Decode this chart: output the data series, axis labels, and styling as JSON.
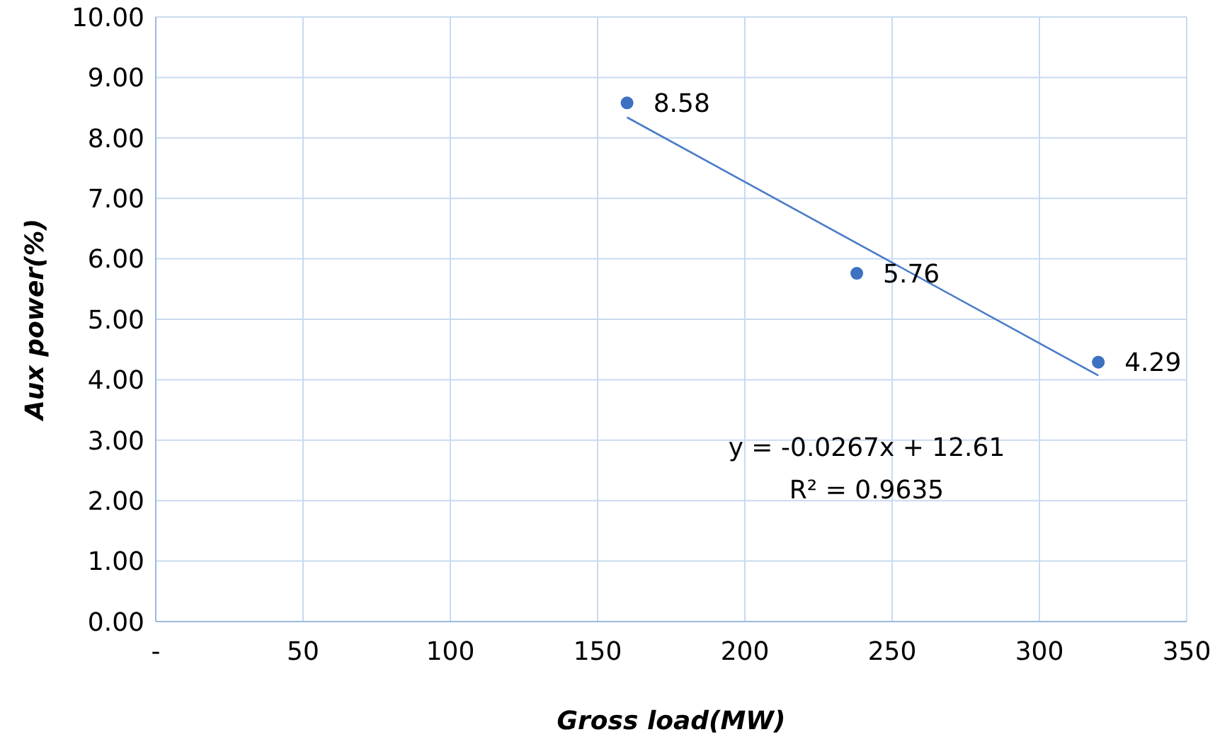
{
  "chart_data": {
    "type": "scatter",
    "xlabel": "Gross load(MW)",
    "ylabel": "Aux power(%)",
    "x": [
      160,
      238,
      320
    ],
    "series": [
      {
        "color": "#3d71c2",
        "values": [
          8.58,
          5.76,
          4.29
        ],
        "value_labels": [
          "8.58",
          "5.76",
          "4.29"
        ]
      },
      {
        "type": "line",
        "color": "#4a7cc8",
        "x": [
          160,
          320
        ],
        "values": [
          8.34,
          4.07
        ]
      }
    ],
    "xlim": [
      0,
      350
    ],
    "xticks": [
      {
        "value": 0,
        "label": "-"
      },
      50,
      100,
      150,
      200,
      250,
      300,
      350
    ],
    "ylim": [
      0,
      10
    ],
    "yticks": [
      {
        "value": 0,
        "label": "0.00"
      },
      {
        "value": 1,
        "label": "1.00"
      },
      {
        "value": 2,
        "label": "2.00"
      },
      {
        "value": 3,
        "label": "3.00"
      },
      {
        "value": 4,
        "label": "4.00"
      },
      {
        "value": 5,
        "label": "5.00"
      },
      {
        "value": 6,
        "label": "6.00"
      },
      {
        "value": 7,
        "label": "7.00"
      },
      {
        "value": 8,
        "label": "8.00"
      },
      {
        "value": 9,
        "label": "9.00"
      },
      {
        "value": 10,
        "label": "10.00"
      }
    ],
    "grid": true,
    "annotations": [
      "y = -0.0267x + 12.61",
      "R² = 0.9635"
    ]
  }
}
